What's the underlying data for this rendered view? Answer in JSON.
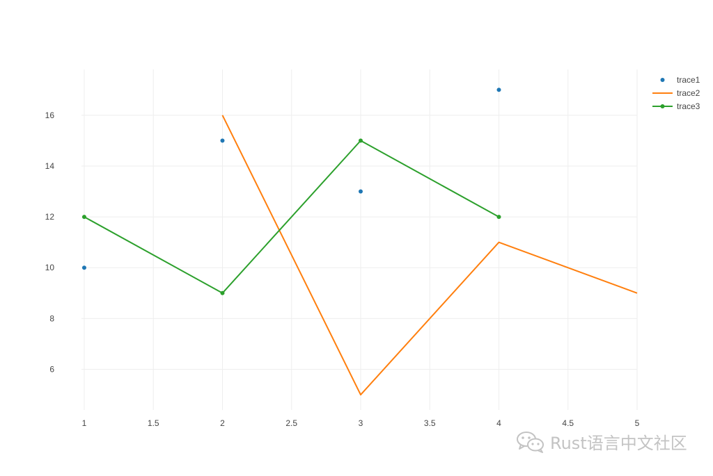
{
  "chart_data": {
    "type": "line",
    "title": "",
    "xlabel": "",
    "ylabel": "",
    "xlim": [
      0.98,
      5
    ],
    "ylim": [
      4.4,
      17.8
    ],
    "grid": true,
    "legend_position": "top-right",
    "x_ticks": [
      1,
      1.5,
      2,
      2.5,
      3,
      3.5,
      4,
      4.5,
      5
    ],
    "x_tick_labels": [
      "1",
      "1.5",
      "2",
      "2.5",
      "3",
      "3.5",
      "4",
      "4.5",
      "5"
    ],
    "y_ticks": [
      6,
      8,
      10,
      12,
      14,
      16
    ],
    "y_tick_labels": [
      "6",
      "8",
      "10",
      "12",
      "14",
      "16"
    ],
    "series": [
      {
        "name": "trace1",
        "mode": "markers",
        "color": "#1f77b4",
        "x": [
          1,
          2,
          3,
          4
        ],
        "y": [
          10,
          15,
          13,
          17
        ]
      },
      {
        "name": "trace2",
        "mode": "lines",
        "color": "#ff7f0e",
        "x": [
          2,
          3,
          4,
          5
        ],
        "y": [
          16,
          5,
          11,
          9
        ]
      },
      {
        "name": "trace3",
        "mode": "lines+markers",
        "color": "#2ca02c",
        "x": [
          1,
          2,
          3,
          4
        ],
        "y": [
          12,
          9,
          15,
          12
        ]
      }
    ]
  },
  "watermark": {
    "text": "Rust语言中文社区",
    "icon": "wechat-icon"
  }
}
